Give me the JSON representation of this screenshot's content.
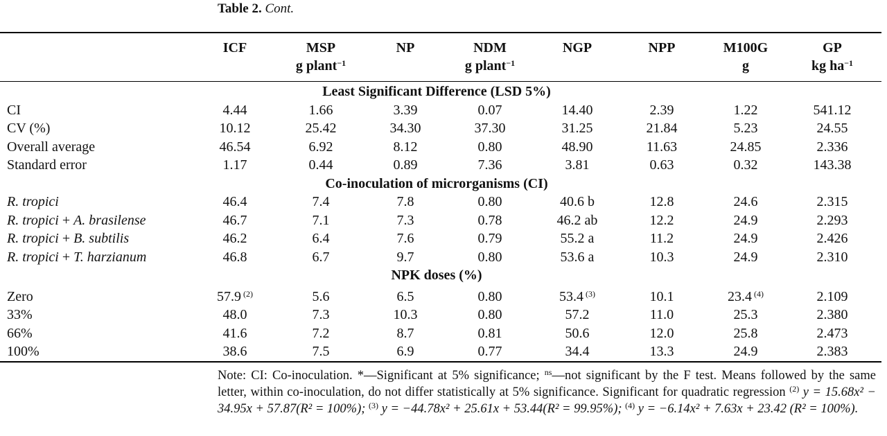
{
  "caption": {
    "label": "Table 2.",
    "cont": "Cont."
  },
  "columns": [
    {
      "name": "ICF",
      "unit": ""
    },
    {
      "name": "MSP",
      "unit": "g plant−1"
    },
    {
      "name": "NP",
      "unit": ""
    },
    {
      "name": "NDM",
      "unit": "g plant−1"
    },
    {
      "name": "NGP",
      "unit": ""
    },
    {
      "name": "NPP",
      "unit": ""
    },
    {
      "name": "M100G",
      "unit": "g"
    },
    {
      "name": "GP",
      "unit": "kg ha−1"
    }
  ],
  "sections": [
    {
      "title": "Least Significant Difference (LSD 5%)",
      "rows": [
        {
          "label": "CI",
          "values": [
            "4.44",
            "1.66",
            "3.39",
            "0.07",
            "14.40",
            "2.39",
            "1.22",
            "541.12"
          ]
        },
        {
          "label": "CV (%)",
          "values": [
            "10.12",
            "25.42",
            "34.30",
            "37.30",
            "31.25",
            "21.84",
            "5.23",
            "24.55"
          ]
        },
        {
          "label": "Overall average",
          "values": [
            "46.54",
            "6.92",
            "8.12",
            "0.80",
            "48.90",
            "11.63",
            "24.85",
            "2.336"
          ]
        },
        {
          "label": "Standard error",
          "values": [
            "1.17",
            "0.44",
            "0.89",
            "7.36",
            "3.81",
            "0.63",
            "0.32",
            "143.38"
          ]
        }
      ]
    },
    {
      "title": "Co-inoculation of microrganisms (CI)",
      "rows": [
        {
          "label": "R. tropici",
          "values": [
            "46.4",
            "7.4",
            "7.8",
            "0.80",
            "40.6 b",
            "12.8",
            "24.6",
            "2.315"
          ]
        },
        {
          "label": "R. tropici + A. brasilense",
          "values": [
            "46.7",
            "7.1",
            "7.3",
            "0.78",
            "46.2 ab",
            "12.2",
            "24.9",
            "2.293"
          ]
        },
        {
          "label": "R. tropici + B. subtilis",
          "values": [
            "46.2",
            "6.4",
            "7.6",
            "0.79",
            "55.2 a",
            "11.2",
            "24.9",
            "2.426"
          ]
        },
        {
          "label": "R. tropici + T. harzianum",
          "values": [
            "46.8",
            "6.7",
            "9.7",
            "0.80",
            "53.6 a",
            "10.3",
            "24.9",
            "2.310"
          ]
        }
      ]
    },
    {
      "title": "NPK doses (%)",
      "rows": [
        {
          "label": "Zero",
          "values": [
            "57.9",
            "5.6",
            "6.5",
            "0.80",
            "53.4",
            "10.1",
            "23.4",
            "2.109"
          ],
          "sups": {
            "0": "(2)",
            "4": "(3)",
            "6": "(4)"
          }
        },
        {
          "label": "33%",
          "values": [
            "48.0",
            "7.3",
            "10.3",
            "0.80",
            "57.2",
            "11.0",
            "25.3",
            "2.380"
          ]
        },
        {
          "label": "66%",
          "values": [
            "41.6",
            "7.2",
            "8.7",
            "0.81",
            "50.6",
            "12.0",
            "25.8",
            "2.473"
          ]
        },
        {
          "label": "100%",
          "values": [
            "38.6",
            "7.5",
            "6.9",
            "0.77",
            "34.4",
            "13.3",
            "24.9",
            "2.383"
          ]
        }
      ]
    }
  ],
  "note": {
    "line1": "Note: CI: Co-inoculation. *—Significant at 5% significance;",
    "ns": "ns",
    "line1b": "—not significant by the F test. Means followed by the same letter, within co-inoculation, do not differ statistically at 5% significance. Significant for quadratic regression",
    "sup2": "(2)",
    "eq2": "y = 15.68x² − 34.95x + 57.87(R² = 100%);",
    "sup3": "(3)",
    "eq3": "y = −44.78x² + 25.61x + 53.44(R² = 99.95%);",
    "sup4": "(4)",
    "eq4": "y = −6.14x² + 7.63x + 23.42 (R² = 100%)."
  }
}
